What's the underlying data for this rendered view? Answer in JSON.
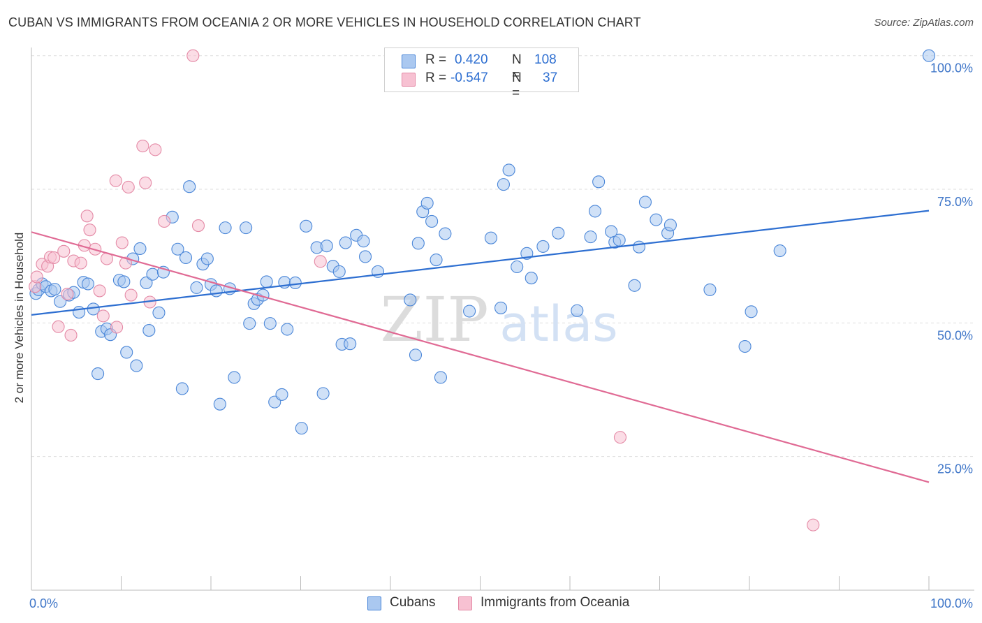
{
  "title": "CUBAN VS IMMIGRANTS FROM OCEANIA 2 OR MORE VEHICLES IN HOUSEHOLD CORRELATION CHART",
  "source": "Source: ZipAtlas.com",
  "watermark": {
    "zip": "ZIP",
    "atlas": "atlas"
  },
  "legend": {
    "rows": [
      {
        "r_label": "R =",
        "r_value": "0.420",
        "n_label": "N =",
        "n_value": "108",
        "color": "#aac8f0",
        "border": "#4a86d8"
      },
      {
        "r_label": "R =",
        "r_value": "-0.547",
        "n_label": "N =",
        "n_value": "37",
        "color": "#f7c1d2",
        "border": "#e48aa6"
      }
    ]
  },
  "bottom_legend": [
    {
      "label": "Cubans",
      "color": "#aac8f0",
      "border": "#4a86d8"
    },
    {
      "label": "Immigrants from Oceania",
      "color": "#f7c1d2",
      "border": "#e48aa6"
    }
  ],
  "chart_data": {
    "type": "scatter",
    "ylabel": "2 or more Vehicles in Household",
    "xlim": [
      0,
      100
    ],
    "ylim": [
      0,
      100
    ],
    "x_tick_labels": [
      {
        "value": 0,
        "label": "0.0%"
      },
      {
        "value": 100,
        "label": "100.0%"
      }
    ],
    "y_tick_labels": [
      {
        "value": 25,
        "label": "25.0%"
      },
      {
        "value": 50,
        "label": "50.0%"
      },
      {
        "value": 75,
        "label": "75.0%"
      },
      {
        "value": 100,
        "label": "100.0%"
      }
    ],
    "grid": true,
    "series": [
      {
        "name": "Cubans",
        "color": "#4a86d8",
        "fill": "#aac8f0",
        "trend": {
          "x": [
            0,
            100
          ],
          "y": [
            51.5,
            71.0
          ],
          "color": "#2e6fd1"
        },
        "points": [
          [
            0.5,
            55.5
          ],
          [
            0.8,
            56.2
          ],
          [
            1.2,
            57.3
          ],
          [
            1.6,
            56.8
          ],
          [
            2.2,
            56.0
          ],
          [
            2.6,
            56.3
          ],
          [
            3.2,
            54.0
          ],
          [
            4.2,
            55.2
          ],
          [
            4.7,
            55.7
          ],
          [
            5.3,
            52.0
          ],
          [
            5.8,
            57.6
          ],
          [
            6.3,
            57.3
          ],
          [
            6.9,
            52.6
          ],
          [
            7.4,
            40.5
          ],
          [
            7.8,
            48.4
          ],
          [
            8.4,
            48.9
          ],
          [
            8.8,
            47.8
          ],
          [
            9.8,
            58.0
          ],
          [
            10.3,
            57.7
          ],
          [
            10.6,
            44.5
          ],
          [
            11.3,
            62.0
          ],
          [
            11.7,
            42.0
          ],
          [
            12.1,
            63.9
          ],
          [
            13.1,
            48.6
          ],
          [
            12.8,
            57.5
          ],
          [
            13.5,
            59.1
          ],
          [
            14.2,
            51.9
          ],
          [
            14.7,
            59.5
          ],
          [
            15.7,
            69.8
          ],
          [
            16.3,
            63.8
          ],
          [
            16.8,
            37.7
          ],
          [
            17.2,
            62.2
          ],
          [
            17.6,
            75.5
          ],
          [
            18.4,
            56.6
          ],
          [
            19.1,
            61.0
          ],
          [
            19.6,
            62.0
          ],
          [
            20.0,
            57.2
          ],
          [
            20.6,
            56.0
          ],
          [
            21.0,
            34.8
          ],
          [
            21.6,
            67.8
          ],
          [
            22.1,
            56.4
          ],
          [
            22.6,
            39.8
          ],
          [
            23.9,
            67.8
          ],
          [
            24.3,
            49.9
          ],
          [
            24.8,
            53.6
          ],
          [
            25.2,
            54.4
          ],
          [
            25.8,
            55.2
          ],
          [
            26.2,
            57.7
          ],
          [
            26.6,
            49.9
          ],
          [
            27.1,
            35.2
          ],
          [
            27.9,
            36.6
          ],
          [
            28.2,
            57.6
          ],
          [
            28.5,
            48.8
          ],
          [
            29.4,
            57.5
          ],
          [
            30.1,
            30.3
          ],
          [
            30.6,
            68.1
          ],
          [
            31.8,
            64.1
          ],
          [
            32.5,
            36.8
          ],
          [
            32.9,
            64.4
          ],
          [
            33.6,
            60.6
          ],
          [
            34.3,
            59.6
          ],
          [
            34.6,
            46.0
          ],
          [
            35.0,
            65.0
          ],
          [
            35.5,
            46.1
          ],
          [
            36.2,
            66.4
          ],
          [
            37.0,
            65.3
          ],
          [
            37.2,
            62.4
          ],
          [
            38.6,
            59.6
          ],
          [
            42.2,
            54.3
          ],
          [
            42.8,
            44.0
          ],
          [
            43.1,
            64.9
          ],
          [
            43.6,
            70.8
          ],
          [
            44.1,
            72.4
          ],
          [
            44.6,
            69.0
          ],
          [
            45.1,
            61.8
          ],
          [
            45.6,
            39.8
          ],
          [
            46.1,
            66.7
          ],
          [
            48.8,
            52.2
          ],
          [
            51.2,
            65.9
          ],
          [
            52.3,
            52.8
          ],
          [
            52.6,
            75.9
          ],
          [
            53.2,
            78.6
          ],
          [
            54.1,
            60.5
          ],
          [
            55.2,
            63.0
          ],
          [
            55.7,
            58.4
          ],
          [
            57.0,
            64.3
          ],
          [
            58.7,
            66.8
          ],
          [
            60.8,
            52.3
          ],
          [
            62.3,
            66.1
          ],
          [
            62.8,
            70.9
          ],
          [
            63.2,
            76.4
          ],
          [
            64.6,
            67.1
          ],
          [
            65.0,
            65.1
          ],
          [
            65.5,
            65.5
          ],
          [
            67.2,
            57.0
          ],
          [
            67.7,
            64.2
          ],
          [
            68.4,
            72.6
          ],
          [
            69.6,
            69.3
          ],
          [
            70.9,
            66.8
          ],
          [
            71.2,
            68.3
          ],
          [
            75.6,
            56.2
          ],
          [
            79.5,
            45.6
          ],
          [
            80.2,
            52.1
          ],
          [
            83.4,
            63.5
          ],
          [
            100.0,
            100.0
          ]
        ]
      },
      {
        "name": "Immigrants from Oceania",
        "color": "#e48aa6",
        "fill": "#f7c1d2",
        "trend": {
          "x": [
            0,
            100
          ],
          "y": [
            67.0,
            20.2
          ],
          "color": "#e06a94"
        },
        "points": [
          [
            0.4,
            56.8
          ],
          [
            0.6,
            58.6
          ],
          [
            1.2,
            61.0
          ],
          [
            1.8,
            60.6
          ],
          [
            2.1,
            62.3
          ],
          [
            2.5,
            62.2
          ],
          [
            3.0,
            49.3
          ],
          [
            3.6,
            63.4
          ],
          [
            4.0,
            55.4
          ],
          [
            4.4,
            47.7
          ],
          [
            4.7,
            61.6
          ],
          [
            5.5,
            61.2
          ],
          [
            5.9,
            64.5
          ],
          [
            6.2,
            70.0
          ],
          [
            6.5,
            67.4
          ],
          [
            7.1,
            63.8
          ],
          [
            7.6,
            56.0
          ],
          [
            8.0,
            51.3
          ],
          [
            8.4,
            62.0
          ],
          [
            9.5,
            49.2
          ],
          [
            9.4,
            76.6
          ],
          [
            10.1,
            65.0
          ],
          [
            10.5,
            61.2
          ],
          [
            10.8,
            75.4
          ],
          [
            11.1,
            55.2
          ],
          [
            12.4,
            83.1
          ],
          [
            12.7,
            76.2
          ],
          [
            13.2,
            53.9
          ],
          [
            13.8,
            82.4
          ],
          [
            14.8,
            69.0
          ],
          [
            18.0,
            100.0
          ],
          [
            18.6,
            68.2
          ],
          [
            32.2,
            61.5
          ],
          [
            65.6,
            28.6
          ],
          [
            87.1,
            12.2
          ]
        ]
      }
    ]
  }
}
